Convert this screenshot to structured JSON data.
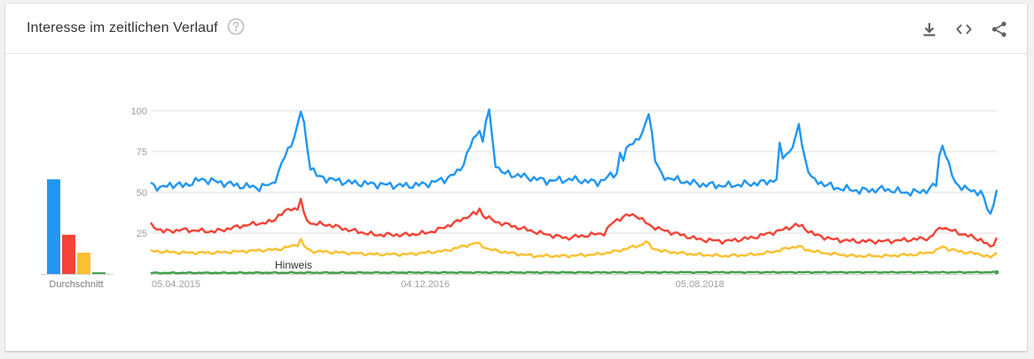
{
  "header": {
    "title": "Interesse im zeitlichen Verlauf",
    "help_icon": "help-circle-icon",
    "actions": [
      {
        "name": "download-icon"
      },
      {
        "name": "embed-code-icon"
      },
      {
        "name": "share-icon"
      }
    ]
  },
  "average_label": "Durchschnitt",
  "note_label": "Hinweis",
  "colors": {
    "blue": "#2196f3",
    "red": "#f44336",
    "yellow": "#fbc02d",
    "green": "#43a047"
  },
  "chart_data": {
    "type": "line",
    "ylim": [
      0,
      100
    ],
    "y_ticks": [
      "100",
      "75",
      "50",
      "25"
    ],
    "x_tick_labels": [
      "05.04.2015",
      "04.12.2016",
      "05.08.2018"
    ],
    "x_tick_index": [
      0,
      86,
      172
    ],
    "point_count": 266,
    "grid": true,
    "series": [
      {
        "color": "#2196f3",
        "average": 58,
        "keyframes": [
          [
            0,
            56
          ],
          [
            3,
            52
          ],
          [
            6,
            55
          ],
          [
            10,
            54
          ],
          [
            16,
            58
          ],
          [
            22,
            56
          ],
          [
            28,
            54
          ],
          [
            34,
            53
          ],
          [
            38,
            55
          ],
          [
            40,
            62
          ],
          [
            42,
            72
          ],
          [
            44,
            80
          ],
          [
            45,
            85
          ],
          [
            46,
            90
          ],
          [
            47,
            100
          ],
          [
            48,
            92
          ],
          [
            49,
            78
          ],
          [
            50,
            66
          ],
          [
            52,
            60
          ],
          [
            56,
            58
          ],
          [
            62,
            56
          ],
          [
            70,
            55
          ],
          [
            80,
            54
          ],
          [
            86,
            55
          ],
          [
            92,
            58
          ],
          [
            96,
            62
          ],
          [
            98,
            68
          ],
          [
            100,
            78
          ],
          [
            102,
            85
          ],
          [
            103,
            90
          ],
          [
            104,
            80
          ],
          [
            105,
            94
          ],
          [
            106,
            100
          ],
          [
            107,
            82
          ],
          [
            108,
            68
          ],
          [
            110,
            62
          ],
          [
            116,
            60
          ],
          [
            124,
            57
          ],
          [
            132,
            58
          ],
          [
            140,
            56
          ],
          [
            142,
            58
          ],
          [
            146,
            62
          ],
          [
            147,
            74
          ],
          [
            148,
            70
          ],
          [
            150,
            80
          ],
          [
            152,
            82
          ],
          [
            154,
            85
          ],
          [
            155,
            92
          ],
          [
            156,
            100
          ],
          [
            157,
            86
          ],
          [
            158,
            70
          ],
          [
            160,
            60
          ],
          [
            166,
            57
          ],
          [
            172,
            55
          ],
          [
            180,
            54
          ],
          [
            186,
            55
          ],
          [
            192,
            56
          ],
          [
            196,
            58
          ],
          [
            197,
            78
          ],
          [
            198,
            72
          ],
          [
            200,
            75
          ],
          [
            202,
            82
          ],
          [
            203,
            92
          ],
          [
            204,
            80
          ],
          [
            205,
            70
          ],
          [
            207,
            58
          ],
          [
            214,
            53
          ],
          [
            222,
            51
          ],
          [
            230,
            52
          ],
          [
            236,
            50
          ],
          [
            240,
            50
          ],
          [
            244,
            52
          ],
          [
            246,
            55
          ],
          [
            247,
            72
          ],
          [
            248,
            80
          ],
          [
            250,
            66
          ],
          [
            252,
            56
          ],
          [
            255,
            52
          ],
          [
            260,
            50
          ],
          [
            263,
            36
          ],
          [
            265,
            52
          ]
        ]
      },
      {
        "color": "#f44336",
        "average": 24,
        "keyframes": [
          [
            0,
            30
          ],
          [
            4,
            26
          ],
          [
            10,
            27
          ],
          [
            20,
            26
          ],
          [
            30,
            30
          ],
          [
            38,
            32
          ],
          [
            40,
            36
          ],
          [
            44,
            40
          ],
          [
            46,
            40
          ],
          [
            47,
            46
          ],
          [
            48,
            36
          ],
          [
            50,
            31
          ],
          [
            56,
            30
          ],
          [
            62,
            27
          ],
          [
            70,
            24
          ],
          [
            80,
            24
          ],
          [
            86,
            25
          ],
          [
            90,
            27
          ],
          [
            96,
            32
          ],
          [
            100,
            36
          ],
          [
            102,
            37
          ],
          [
            103,
            40
          ],
          [
            104,
            36
          ],
          [
            108,
            32
          ],
          [
            116,
            28
          ],
          [
            122,
            25
          ],
          [
            130,
            22
          ],
          [
            138,
            24
          ],
          [
            142,
            25
          ],
          [
            145,
            32
          ],
          [
            148,
            35
          ],
          [
            150,
            36
          ],
          [
            152,
            36
          ],
          [
            154,
            33
          ],
          [
            156,
            30
          ],
          [
            160,
            27
          ],
          [
            166,
            24
          ],
          [
            172,
            21
          ],
          [
            180,
            20
          ],
          [
            188,
            22
          ],
          [
            194,
            25
          ],
          [
            198,
            27
          ],
          [
            202,
            30
          ],
          [
            204,
            29
          ],
          [
            208,
            24
          ],
          [
            214,
            21
          ],
          [
            222,
            20
          ],
          [
            230,
            20
          ],
          [
            238,
            21
          ],
          [
            244,
            22
          ],
          [
            246,
            26
          ],
          [
            248,
            29
          ],
          [
            250,
            27
          ],
          [
            255,
            24
          ],
          [
            260,
            21
          ],
          [
            262,
            18
          ],
          [
            263,
            16
          ],
          [
            265,
            22
          ]
        ]
      },
      {
        "color": "#fbc02d",
        "average": 13,
        "keyframes": [
          [
            0,
            14
          ],
          [
            10,
            13
          ],
          [
            20,
            13
          ],
          [
            30,
            14
          ],
          [
            40,
            15
          ],
          [
            44,
            17
          ],
          [
            46,
            18
          ],
          [
            47,
            21
          ],
          [
            48,
            17
          ],
          [
            50,
            14
          ],
          [
            60,
            13
          ],
          [
            70,
            12
          ],
          [
            80,
            12
          ],
          [
            86,
            13
          ],
          [
            92,
            14
          ],
          [
            96,
            16
          ],
          [
            100,
            18
          ],
          [
            102,
            19
          ],
          [
            104,
            17
          ],
          [
            106,
            15
          ],
          [
            112,
            13
          ],
          [
            120,
            11
          ],
          [
            130,
            11
          ],
          [
            140,
            12
          ],
          [
            146,
            14
          ],
          [
            150,
            16
          ],
          [
            154,
            18
          ],
          [
            155,
            20
          ],
          [
            157,
            16
          ],
          [
            160,
            14
          ],
          [
            170,
            12
          ],
          [
            180,
            11
          ],
          [
            190,
            12
          ],
          [
            196,
            14
          ],
          [
            200,
            16
          ],
          [
            203,
            17
          ],
          [
            205,
            15
          ],
          [
            210,
            13
          ],
          [
            220,
            11
          ],
          [
            230,
            11
          ],
          [
            240,
            12
          ],
          [
            246,
            14
          ],
          [
            248,
            17
          ],
          [
            250,
            15
          ],
          [
            256,
            13
          ],
          [
            260,
            12
          ],
          [
            263,
            10
          ],
          [
            265,
            13
          ]
        ]
      },
      {
        "color": "#43a047",
        "average": 1,
        "keyframes": [
          [
            0,
            0.6
          ],
          [
            60,
            0.8
          ],
          [
            120,
            0.9
          ],
          [
            180,
            1
          ],
          [
            240,
            1
          ],
          [
            265,
            1
          ]
        ]
      }
    ]
  }
}
